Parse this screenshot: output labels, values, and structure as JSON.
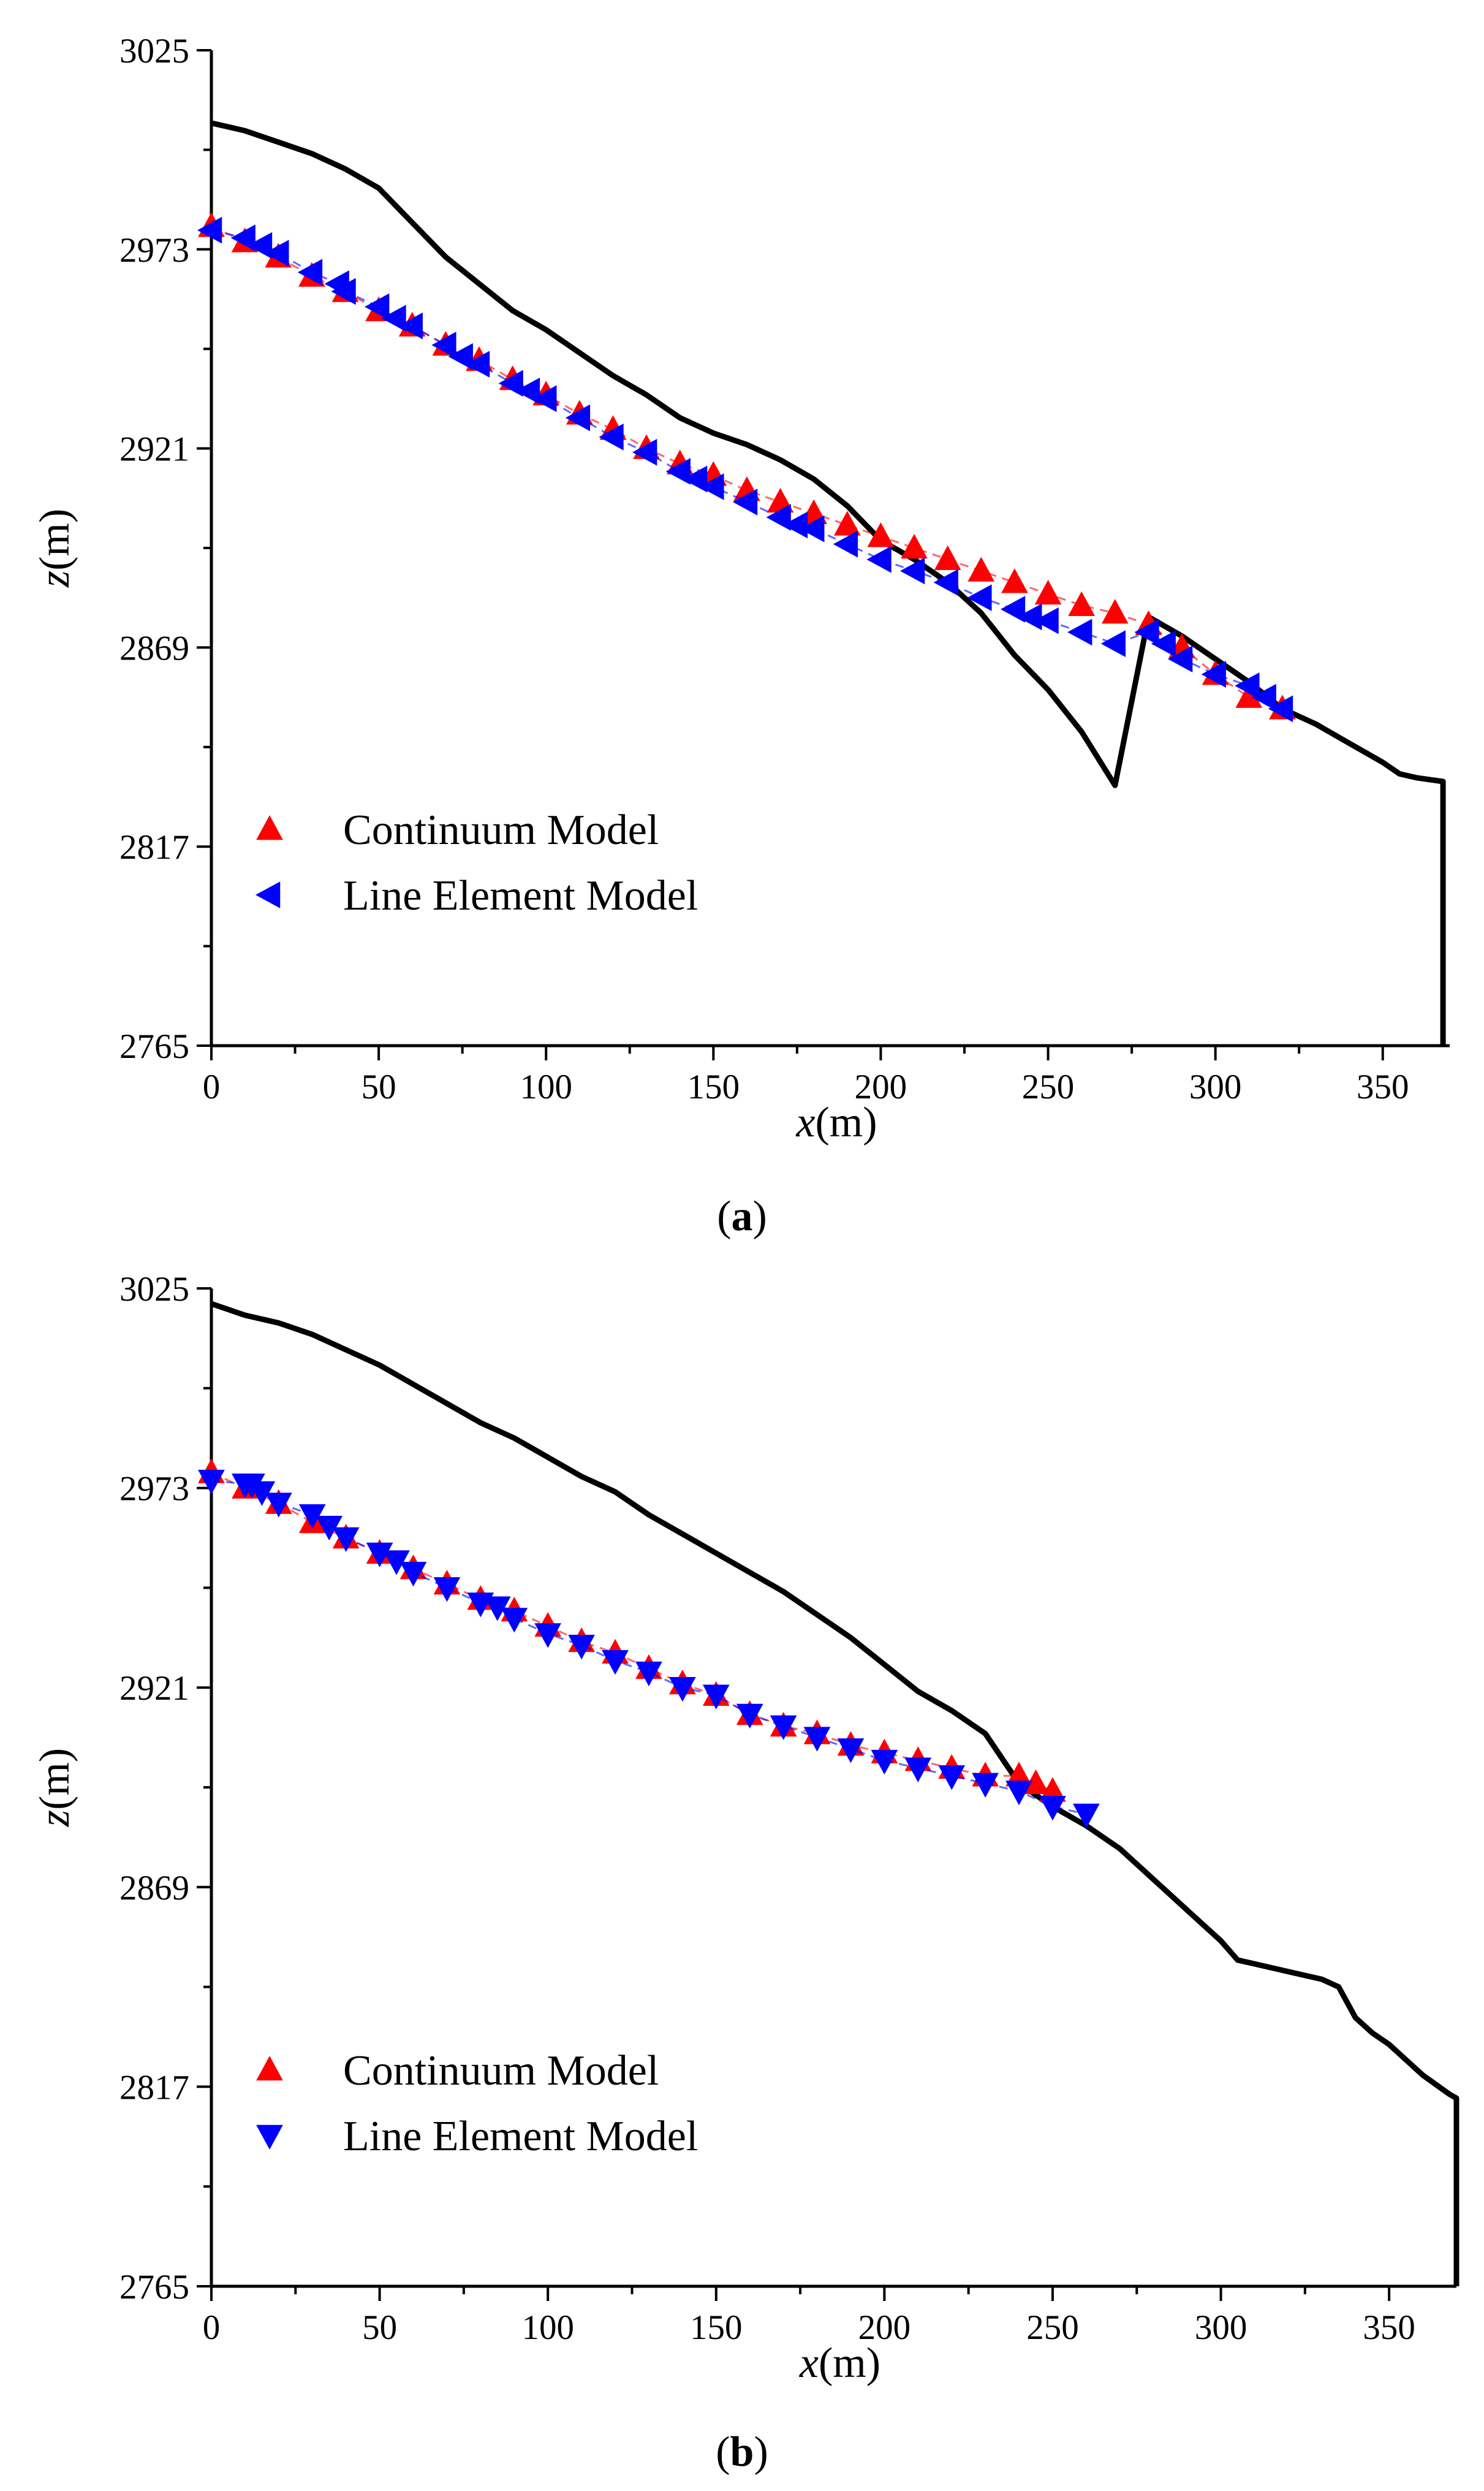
{
  "colors": {
    "continuum": "#ff0000",
    "line_element": "#0000ff",
    "surface": "#000000"
  },
  "chart_data": [
    {
      "type": "scatter",
      "panel_label": {
        "open": "(",
        "letter": "a",
        "close": ")"
      },
      "xlabel": {
        "var": "x",
        "unit": "(m)"
      },
      "ylabel": {
        "var": "z",
        "unit": "(m)"
      },
      "xlim": [
        0,
        370
      ],
      "ylim": [
        2765,
        3025
      ],
      "xticks": [
        0,
        50,
        100,
        150,
        200,
        250,
        300,
        350
      ],
      "yticks": [
        2765,
        2817,
        2869,
        2921,
        2973,
        3025
      ],
      "grid": false,
      "legend_position": "lower-left",
      "surface": {
        "x": [
          0,
          10,
          20,
          30,
          40,
          50,
          60,
          70,
          80,
          90,
          100,
          110,
          120,
          130,
          140,
          150,
          160,
          170,
          180,
          190,
          200,
          210,
          220,
          230,
          240,
          250,
          260,
          270,
          280,
          290,
          300,
          310,
          320,
          330,
          340,
          350,
          355,
          360,
          368,
          368
        ],
        "z": [
          3006,
          3004,
          3001,
          2998,
          2994,
          2989,
          2980,
          2971,
          2964,
          2957,
          2952,
          2946,
          2940,
          2935,
          2929,
          2925,
          2922,
          2918,
          2913,
          2906,
          2897,
          2892,
          2886,
          2878,
          2867,
          2858,
          2847,
          2833,
          2877,
          2872,
          2866,
          2860,
          2853,
          2849,
          2844,
          2839,
          2836,
          2835,
          2834,
          2765
        ]
      },
      "series": [
        {
          "name": "Continuum Model",
          "marker": "triangle-up",
          "x": [
            0,
            10,
            20,
            30,
            40,
            50,
            60,
            70,
            80,
            90,
            100,
            110,
            120,
            130,
            140,
            150,
            160,
            170,
            180,
            190,
            200,
            210,
            220,
            230,
            240,
            250,
            260,
            270,
            280,
            290,
            300,
            310,
            320
          ],
          "z": [
            2979,
            2975,
            2971,
            2966,
            2962,
            2957,
            2953,
            2948,
            2944,
            2939,
            2935,
            2930,
            2926,
            2921,
            2917,
            2914,
            2910,
            2907,
            2904,
            2901,
            2898,
            2895,
            2892,
            2889,
            2886,
            2883,
            2880,
            2878,
            2875,
            2869,
            2862,
            2856,
            2853
          ]
        },
        {
          "name": "Line Element Model",
          "marker": "triangle-left",
          "x": [
            0,
            10,
            15,
            20,
            30,
            38,
            40,
            50,
            55,
            60,
            70,
            75,
            80,
            90,
            95,
            100,
            110,
            120,
            130,
            140,
            145,
            150,
            160,
            170,
            175,
            180,
            190,
            200,
            210,
            220,
            230,
            240,
            245,
            250,
            260,
            270,
            280,
            285,
            290,
            300,
            310,
            315,
            320
          ],
          "z": [
            2978,
            2976,
            2974,
            2972,
            2967,
            2964,
            2962,
            2958,
            2955,
            2953,
            2948,
            2945,
            2943,
            2938,
            2936,
            2934,
            2929,
            2924,
            2920,
            2915,
            2913,
            2911,
            2907,
            2903,
            2901,
            2900,
            2896,
            2892,
            2889,
            2886,
            2882,
            2879,
            2877,
            2876,
            2873,
            2870,
            2873,
            2870,
            2866,
            2862,
            2859,
            2856,
            2853
          ]
        }
      ]
    },
    {
      "type": "scatter",
      "panel_label": {
        "open": "(",
        "letter": "b",
        "close": ")"
      },
      "xlabel": {
        "var": "x",
        "unit": "(m)"
      },
      "ylabel": {
        "var": "z",
        "unit": "(m)"
      },
      "xlim": [
        0,
        370
      ],
      "ylim": [
        2765,
        3025
      ],
      "xticks": [
        0,
        50,
        100,
        150,
        200,
        250,
        300,
        350
      ],
      "yticks": [
        2765,
        2817,
        2869,
        2921,
        2973,
        3025
      ],
      "grid": false,
      "legend_position": "lower-left",
      "surface": {
        "x": [
          0,
          10,
          20,
          30,
          40,
          50,
          60,
          70,
          80,
          90,
          100,
          110,
          120,
          130,
          140,
          150,
          160,
          170,
          180,
          190,
          200,
          210,
          220,
          230,
          240,
          250,
          260,
          270,
          280,
          290,
          300,
          305,
          310,
          320,
          330,
          335,
          340,
          345,
          350,
          360,
          368,
          370,
          370
        ],
        "z": [
          3021,
          3018,
          3016,
          3013,
          3009,
          3005,
          3000,
          2995,
          2990,
          2986,
          2981,
          2976,
          2972,
          2966,
          2961,
          2956,
          2951,
          2946,
          2940,
          2934,
          2927,
          2920,
          2915,
          2909,
          2896,
          2890,
          2885,
          2879,
          2871,
          2863,
          2855,
          2850,
          2849,
          2847,
          2845,
          2843,
          2835,
          2831,
          2828,
          2820,
          2815,
          2814,
          2765
        ]
      },
      "series": [
        {
          "name": "Continuum Model",
          "marker": "triangle-up",
          "x": [
            0,
            10,
            20,
            30,
            40,
            50,
            60,
            70,
            80,
            90,
            100,
            110,
            120,
            130,
            140,
            150,
            160,
            170,
            180,
            190,
            200,
            210,
            220,
            230,
            240,
            245,
            250
          ],
          "z": [
            2977,
            2973,
            2969,
            2964,
            2960,
            2956,
            2952,
            2948,
            2944,
            2941,
            2937,
            2933,
            2930,
            2926,
            2922,
            2919,
            2914,
            2911,
            2909,
            2906,
            2904,
            2902,
            2900,
            2898,
            2898,
            2896,
            2894
          ]
        },
        {
          "name": "Line Element Model",
          "marker": "triangle-down",
          "x": [
            0,
            10,
            12,
            15,
            20,
            30,
            35,
            40,
            50,
            55,
            60,
            70,
            80,
            85,
            90,
            100,
            110,
            120,
            130,
            140,
            150,
            160,
            170,
            180,
            190,
            200,
            210,
            220,
            230,
            240,
            250,
            260
          ],
          "z": [
            2975,
            2974,
            2974,
            2972,
            2969,
            2966,
            2963,
            2960,
            2956,
            2954,
            2951,
            2947,
            2943,
            2942,
            2939,
            2935,
            2932,
            2928,
            2925,
            2921,
            2919,
            2914,
            2911,
            2908,
            2905,
            2902,
            2900,
            2898,
            2896,
            2894,
            2890,
            2888
          ]
        }
      ]
    }
  ]
}
